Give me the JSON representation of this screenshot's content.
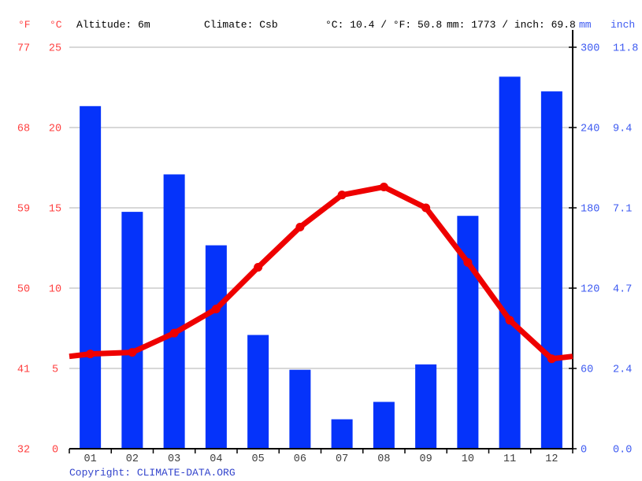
{
  "header": {
    "fahrenheit_label": "°F",
    "celsius_label": "°C",
    "altitude": "Altitude: 6m",
    "climate": "Climate: Csb",
    "temperature_summary": "°C: 10.4 / °F: 50.8",
    "precipitation_summary": "mm: 1773 / inch: 69.8",
    "mm_label": "mm",
    "inch_label": "inch"
  },
  "footer": {
    "copyright_prefix": "Copyright: ",
    "copyright_link": "CLIMATE-DATA.ORG"
  },
  "colors": {
    "bar": "#0533fa",
    "temp_line": "#ee0000",
    "red_text": "#ff4040",
    "blue_text": "#3d5af1",
    "month_text": "#3d3d3d",
    "gridline": "#cccccc",
    "axis": "#000000"
  },
  "chart_data": {
    "type": "bar+line",
    "title": "Climograph: monthly precipitation and temperature",
    "categories": [
      "01",
      "02",
      "03",
      "04",
      "05",
      "06",
      "07",
      "08",
      "09",
      "10",
      "11",
      "12"
    ],
    "series": [
      {
        "name": "precipitation_mm",
        "type": "bar",
        "values": [
          256,
          177,
          205,
          152,
          85,
          59,
          22,
          35,
          63,
          174,
          278,
          267
        ]
      },
      {
        "name": "temperature_c",
        "type": "line",
        "values": [
          5.9,
          6.0,
          7.2,
          8.7,
          11.3,
          13.8,
          15.8,
          16.3,
          15.0,
          11.6,
          8.0,
          5.6
        ]
      }
    ],
    "line_edge_value": 5.75,
    "axes": {
      "left_fahrenheit": {
        "ticks": [
          "77",
          "68",
          "59",
          "50",
          "41",
          "32"
        ]
      },
      "left_celsius": {
        "ticks": [
          "25",
          "20",
          "15",
          "10",
          "5",
          "0"
        ],
        "range": [
          0,
          25
        ]
      },
      "right_mm": {
        "ticks": [
          "300",
          "240",
          "180",
          "120",
          "60",
          "0"
        ],
        "range": [
          0,
          300
        ]
      },
      "right_inch": {
        "ticks": [
          "11.8",
          "9.4",
          "7.1",
          "4.7",
          "2.4",
          "0.0"
        ]
      }
    },
    "grid": true,
    "legend": false
  }
}
